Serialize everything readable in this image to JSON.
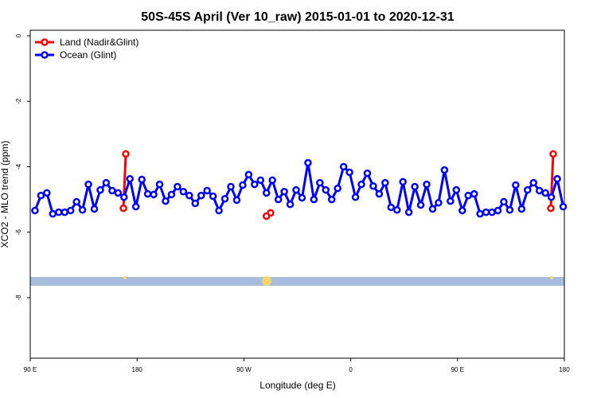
{
  "chart_data": {
    "type": "line",
    "title": "50S-45S April (Ver 10_raw)   2015-01-01 to 2020-12-31",
    "x_label": "Longitude (deg E)",
    "y_label": "XCO2 - MLO trend (ppm)",
    "xlim": [
      90,
      540
    ],
    "xticks": [
      {
        "value": 90,
        "label": "90 E"
      },
      180,
      {
        "value": 270,
        "label": "90 W"
      },
      {
        "value": 360,
        "label": "0"
      },
      {
        "value": 450,
        "label": "90 E"
      },
      {
        "value": 540,
        "label": "180"
      }
    ],
    "ylim": [
      -9.85,
      0.17
    ],
    "yticks": [
      0,
      -2,
      -4,
      -6,
      -8
    ],
    "grid": false,
    "legend": "top-left",
    "series": [
      {
        "name": "Land (Nadir&Glint)",
        "color": "#ff0000",
        "x": [
          168.5,
          170.5,
          null,
          289,
          292.5,
          null,
          528.6,
          530.6
        ],
        "values": [
          -5.27,
          -3.61,
          null,
          -5.51,
          -5.41,
          null,
          -5.27,
          -3.61
        ]
      },
      {
        "name": "Ocean (Glint)",
        "color": "#0000ff",
        "x": [
          94,
          99,
          104,
          109,
          114,
          119,
          124,
          129,
          134,
          139,
          144,
          149,
          154,
          159,
          164,
          169,
          174,
          179,
          184,
          189,
          194,
          199,
          204,
          209,
          214,
          219,
          224,
          229,
          234,
          239,
          244,
          249,
          254,
          259,
          264,
          269,
          274,
          279,
          284,
          289,
          294,
          299,
          304,
          309,
          314,
          319,
          324,
          329,
          334,
          339,
          344,
          349,
          354,
          359,
          364,
          369,
          374,
          379,
          384,
          389,
          394,
          399,
          404,
          409,
          414,
          419,
          424,
          429,
          434,
          439,
          444,
          449,
          454,
          459,
          464,
          469,
          474,
          479,
          484,
          489,
          494,
          499,
          504,
          509,
          514,
          519,
          524,
          529,
          534,
          539
        ],
        "values": [
          -5.34,
          -4.88,
          -4.8,
          -5.44,
          -5.39,
          -5.39,
          -5.34,
          -5.07,
          -5.32,
          -4.54,
          -5.29,
          -4.71,
          -4.49,
          -4.73,
          -4.8,
          -4.93,
          -4.37,
          -5.22,
          -4.39,
          -4.83,
          -4.85,
          -4.54,
          -5.05,
          -4.85,
          -4.61,
          -4.76,
          -4.88,
          -5.12,
          -4.88,
          -4.73,
          -4.9,
          -5.34,
          -4.98,
          -4.61,
          -5.02,
          -4.56,
          -4.24,
          -4.54,
          -4.41,
          -4.8,
          -4.41,
          -5.0,
          -4.76,
          -5.15,
          -4.71,
          -4.95,
          -3.88,
          -5.0,
          -4.49,
          -4.71,
          -5.0,
          -4.66,
          -4.0,
          -4.17,
          -4.93,
          -4.54,
          -4.2,
          -4.59,
          -4.83,
          -4.49,
          -5.24,
          -5.32,
          -4.46,
          -5.39,
          -4.61,
          -5.17,
          -4.54,
          -5.29,
          -5.1,
          -4.1,
          -5.05,
          -4.71,
          -5.34,
          -4.88,
          -4.83,
          -5.44,
          -5.39,
          -5.39,
          -5.34,
          -5.07,
          -5.32,
          -4.56,
          -5.29,
          -4.71,
          -4.49,
          -4.73,
          -4.8,
          -4.93,
          -4.37,
          -5.22
        ]
      }
    ]
  }
}
